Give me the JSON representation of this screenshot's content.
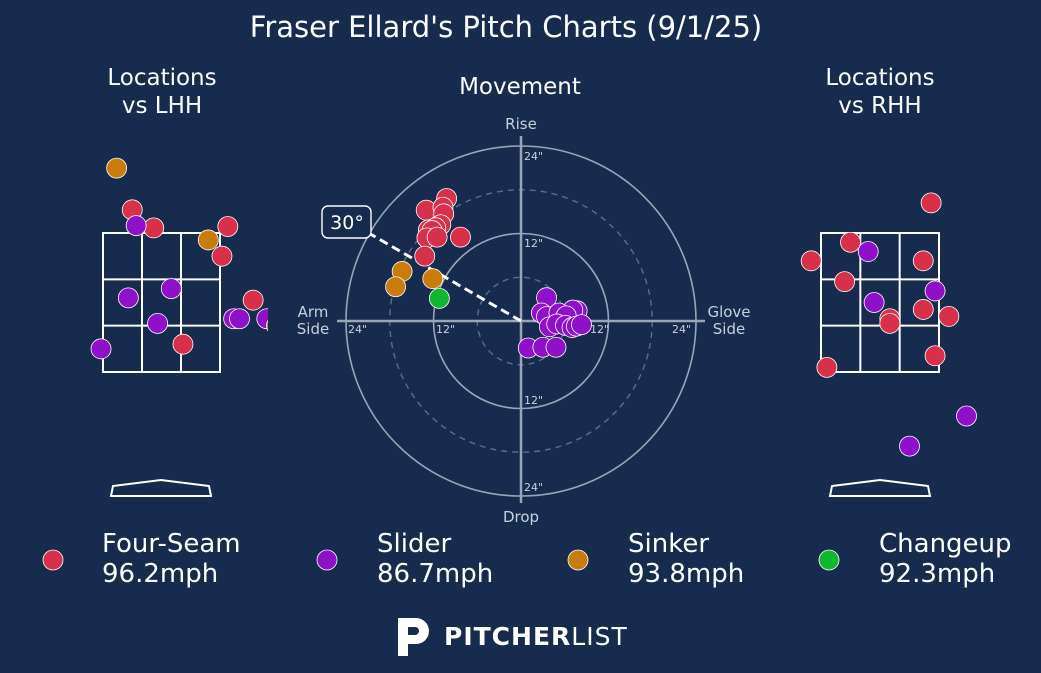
{
  "title": "Fraser Ellard's Pitch Charts (9/1/25)",
  "colors": {
    "background": "#162b4d",
    "Four-Seam": "#d6304a",
    "Slider": "#8f10c9",
    "Sinker": "#c87d0b",
    "Changeup": "#12b52f",
    "zone_line": "#ffffff",
    "grid": "#9aa6b8"
  },
  "logo": {
    "brand_bold": "PITCHER",
    "brand_light": "LIST",
    "icon": "pitcherlist-p-icon"
  },
  "legend": [
    {
      "pitch": "Four-Seam",
      "velo": "96.2mph"
    },
    {
      "pitch": "Slider",
      "velo": "86.7mph"
    },
    {
      "pitch": "Sinker",
      "velo": "93.8mph"
    },
    {
      "pitch": "Changeup",
      "velo": "92.3mph"
    }
  ],
  "chart_data": [
    {
      "type": "scatter",
      "title": "Locations\nvs LHH",
      "x_units": "zone widths from left edge (0-3)",
      "y_units": "zone heights from top edge (0-3)",
      "series": [
        {
          "name": "Four-Seam",
          "points": [
            [
              0.75,
              -0.5
            ],
            [
              1.3,
              -0.11
            ],
            [
              3.2,
              -0.14
            ],
            [
              3.05,
              0.5
            ],
            [
              3.85,
              1.45
            ],
            [
              2.05,
              2.4
            ]
          ]
        },
        {
          "name": "Slider",
          "points": [
            [
              0.85,
              -0.16
            ],
            [
              0.65,
              1.4
            ],
            [
              1.75,
              1.2
            ],
            [
              1.4,
              1.95
            ],
            [
              3.35,
              1.85
            ],
            [
              3.5,
              1.85
            ],
            [
              4.2,
              1.85
            ],
            [
              -0.05,
              2.5
            ]
          ]
        },
        {
          "name": "Sinker",
          "points": [
            [
              0.35,
              -1.4
            ],
            [
              2.7,
              0.15
            ],
            [
              4.45,
              2.0
            ]
          ]
        },
        {
          "name": "Changeup",
          "points": []
        }
      ]
    },
    {
      "type": "scatter",
      "title": "Movement",
      "axis_labels": {
        "top": "Rise",
        "bottom": "Drop",
        "left": "Arm\nSide",
        "right": "Glove\nSide"
      },
      "ring_labels": [
        "24\"",
        "12\"",
        "12\"",
        "24\"",
        "24\"",
        "12\"",
        "12\"",
        "24\""
      ],
      "radial_max_inches": 24,
      "arm_angle_label": "30°",
      "arm_angle_deg": 30,
      "units": "inches (x: + glove side, y: + rise)",
      "series": [
        {
          "name": "Four-Seam",
          "points": [
            [
              -13,
              15.2
            ],
            [
              -10.2,
              16.8
            ],
            [
              -10.7,
              15.6
            ],
            [
              -12.7,
              12.5
            ],
            [
              -10.6,
              14.7
            ],
            [
              -11,
              13.2
            ],
            [
              -11.7,
              12.8
            ],
            [
              -12.2,
              12.4
            ],
            [
              -12.9,
              11.4
            ],
            [
              -11.5,
              11.5
            ],
            [
              -8.3,
              11.5
            ],
            [
              -13.2,
              8.9
            ]
          ]
        },
        {
          "name": "Slider",
          "points": [
            [
              3.5,
              3.2
            ],
            [
              2.8,
              1.1
            ],
            [
              3.5,
              0.6
            ],
            [
              7.7,
              1.4
            ],
            [
              7.1,
              1.5
            ],
            [
              5.2,
              1.1
            ],
            [
              6.2,
              0.7
            ],
            [
              3.9,
              -0.8
            ],
            [
              4.9,
              -0.4
            ],
            [
              6.1,
              -0.6
            ],
            [
              7.0,
              -0.9
            ],
            [
              7.6,
              -0.7
            ],
            [
              8.3,
              -0.5
            ],
            [
              1,
              -3.7
            ],
            [
              3,
              -3.6
            ],
            [
              4.8,
              -3.6
            ]
          ]
        },
        {
          "name": "Sinker",
          "points": [
            [
              -16.3,
              6.8
            ],
            [
              -17.2,
              4.7
            ],
            [
              -12.1,
              5.8
            ]
          ]
        },
        {
          "name": "Changeup",
          "points": [
            [
              -11.2,
              3.1
            ]
          ]
        }
      ]
    },
    {
      "type": "scatter",
      "title": "Locations\nvs RHH",
      "x_units": "zone widths from left edge (0-3)",
      "y_units": "zone heights from top edge (0-3)",
      "series": [
        {
          "name": "Four-Seam",
          "points": [
            [
              2.8,
              -0.65
            ],
            [
              0.75,
              0.2
            ],
            [
              -0.25,
              0.6
            ],
            [
              2.6,
              0.6
            ],
            [
              0.6,
              1.05
            ],
            [
              2.6,
              1.65
            ],
            [
              3.25,
              1.8
            ],
            [
              1.75,
              1.85
            ],
            [
              1.75,
              1.95
            ],
            [
              2.9,
              2.65
            ],
            [
              0.15,
              2.9
            ]
          ]
        },
        {
          "name": "Slider",
          "points": [
            [
              1.2,
              0.4
            ],
            [
              2.9,
              1.25
            ],
            [
              1.35,
              1.5
            ],
            [
              3.7,
              3.95
            ],
            [
              2.25,
              4.6
            ]
          ]
        },
        {
          "name": "Sinker",
          "points": []
        },
        {
          "name": "Changeup",
          "points": []
        }
      ]
    }
  ]
}
